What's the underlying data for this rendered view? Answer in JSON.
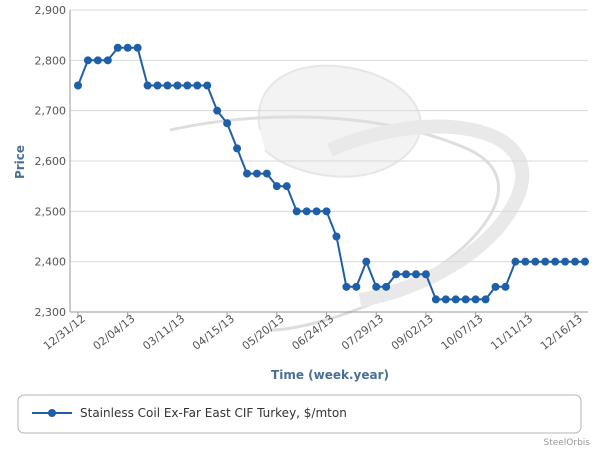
{
  "chart_data": {
    "type": "line",
    "title": "",
    "xlabel": "Time (week.year)",
    "ylabel": "Price",
    "ylim": [
      2300,
      2900
    ],
    "yticks": [
      "2,300",
      "2,400",
      "2,500",
      "2,600",
      "2,700",
      "2,800",
      "2,900"
    ],
    "xtick_labels": [
      "12/31/12",
      "02/04/13",
      "03/11/13",
      "04/15/13",
      "05/20/13",
      "06/24/13",
      "07/29/13",
      "09/02/13",
      "10/07/13",
      "11/11/13",
      "12/16/13"
    ],
    "grid": true,
    "legend_position": "bottom",
    "series": [
      {
        "name": "Stainless Coil Ex-Far East CIF Turkey, $/mton",
        "color": "#1f5fa8",
        "x": [
          "12/31/12",
          "01/07/13",
          "01/14/13",
          "01/21/13",
          "01/28/13",
          "02/04/13",
          "02/11/13",
          "02/18/13",
          "02/25/13",
          "03/04/13",
          "03/11/13",
          "03/18/13",
          "03/25/13",
          "04/01/13",
          "04/08/13",
          "04/15/13",
          "04/22/13",
          "04/29/13",
          "05/06/13",
          "05/13/13",
          "05/20/13",
          "05/27/13",
          "06/03/13",
          "06/10/13",
          "06/17/13",
          "06/24/13",
          "07/01/13",
          "07/08/13",
          "07/15/13",
          "07/22/13",
          "07/29/13",
          "08/05/13",
          "08/12/13",
          "08/19/13",
          "08/26/13",
          "09/02/13",
          "09/09/13",
          "09/16/13",
          "09/23/13",
          "09/30/13",
          "10/07/13",
          "10/14/13",
          "10/21/13",
          "10/28/13",
          "11/04/13",
          "11/11/13",
          "11/18/13",
          "11/25/13",
          "12/02/13",
          "12/09/13",
          "12/16/13",
          "12/23/13"
        ],
        "values": [
          2750,
          2800,
          2800,
          2800,
          2825,
          2825,
          2825,
          2750,
          2750,
          2750,
          2750,
          2750,
          2750,
          2750,
          2700,
          2675,
          2625,
          2575,
          2575,
          2575,
          2550,
          2550,
          2500,
          2500,
          2500,
          2500,
          2450,
          2350,
          2350,
          2400,
          2350,
          2350,
          2375,
          2375,
          2375,
          2375,
          2325,
          2325,
          2325,
          2325,
          2325,
          2325,
          2350,
          2350,
          2400,
          2400,
          2400,
          2400,
          2400,
          2400,
          2400,
          2400
        ]
      }
    ]
  },
  "watermark": {
    "credit_text": "SteelOrbis"
  }
}
